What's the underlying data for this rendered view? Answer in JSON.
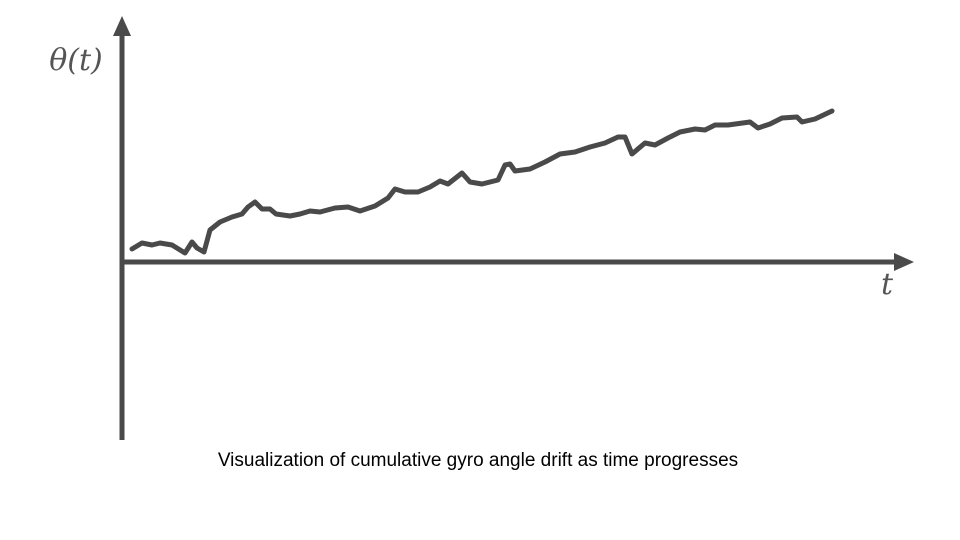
{
  "chart_data": {
    "type": "line",
    "y_label": "θ(t)",
    "x_label": "t",
    "caption": "Visualization of cumulative gyro angle drift as time progresses",
    "xlim": [
      0,
      790
    ],
    "ylim": [
      -178,
      244
    ],
    "color": "#4a4a4a",
    "x": [
      10,
      20,
      30,
      38,
      50,
      63,
      70,
      75,
      82,
      88,
      98,
      110,
      120,
      126,
      133,
      140,
      148,
      154,
      168,
      178,
      188,
      198,
      213,
      226,
      238,
      253,
      266,
      273,
      283,
      296,
      308,
      318,
      326,
      340,
      348,
      360,
      376,
      383,
      388,
      393,
      408,
      423,
      438,
      453,
      468,
      483,
      496,
      503,
      510,
      523,
      533,
      546,
      558,
      573,
      583,
      593,
      606,
      628,
      636,
      648,
      660,
      675,
      680,
      693,
      710
    ],
    "values": [
      13,
      19,
      17,
      19,
      17,
      9,
      20,
      14,
      10,
      32,
      40,
      45,
      48,
      55,
      60,
      53,
      53,
      48,
      46,
      48,
      51,
      50,
      54,
      55,
      51,
      56,
      64,
      73,
      70,
      70,
      75,
      81,
      78,
      89,
      80,
      78,
      82,
      97,
      98,
      91,
      93,
      100,
      108,
      110,
      115,
      119,
      125,
      125,
      108,
      119,
      117,
      124,
      130,
      133,
      132,
      137,
      137,
      140,
      134,
      138,
      144,
      145,
      140,
      143,
      151
    ]
  }
}
